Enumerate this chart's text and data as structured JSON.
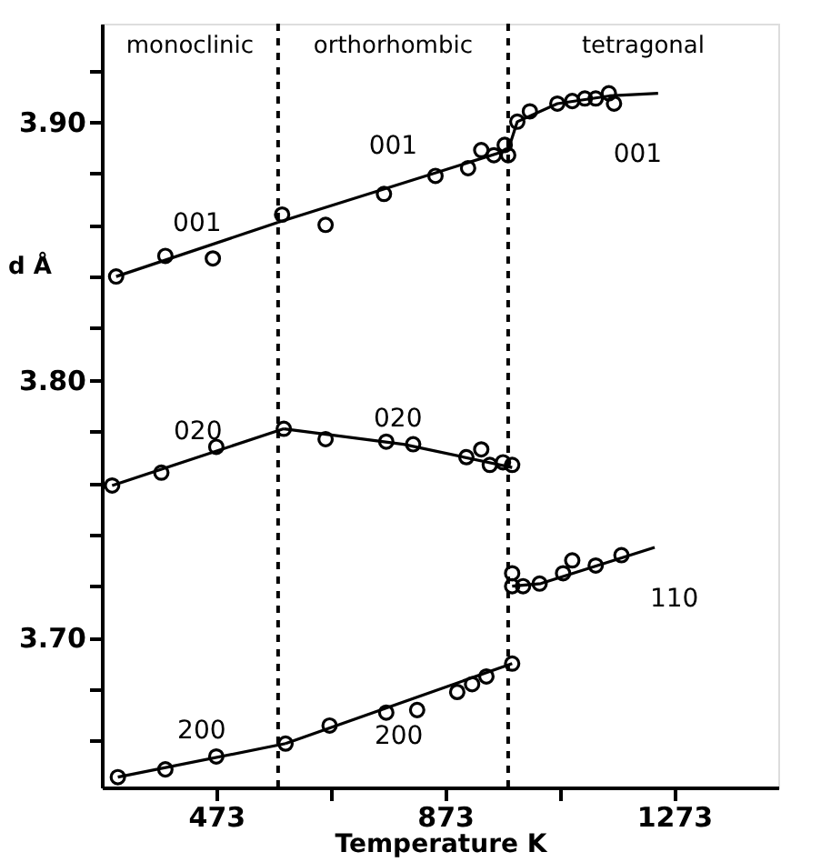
{
  "chart_data": {
    "type": "scatter",
    "xlabel": "Temperature K",
    "ylabel": "d Å",
    "xlim": [
      273,
      1455
    ],
    "ylim": [
      3.642,
      3.938
    ],
    "xticks": [
      473,
      {
        "value": 673,
        "label": null
      },
      873,
      {
        "value": 1073,
        "label": null
      },
      1273
    ],
    "yticks": [
      {
        "value": 3.66,
        "label": null
      },
      {
        "value": 3.68,
        "label": null
      },
      {
        "value": 3.7,
        "label": "3.70"
      },
      {
        "value": 3.72,
        "label": null
      },
      {
        "value": 3.74,
        "label": null
      },
      {
        "value": 3.76,
        "label": null
      },
      {
        "value": 3.78,
        "label": null
      },
      {
        "value": 3.8,
        "label": "3.80"
      },
      {
        "value": 3.82,
        "label": null
      },
      {
        "value": 3.84,
        "label": null
      },
      {
        "value": 3.86,
        "label": null
      },
      {
        "value": 3.88,
        "label": null
      },
      {
        "value": 3.9,
        "label": "3.90"
      },
      {
        "value": 3.92,
        "label": null
      }
    ],
    "grid": false,
    "legend": false,
    "series": [
      {
        "type": "line",
        "name": "001",
        "color": "#000000",
        "marker": "none",
        "line_style": "solid",
        "x": [
          298,
          581
        ],
        "values": [
          3.84,
          3.861
        ]
      },
      {
        "type": "line",
        "name": "001",
        "color": "#000000",
        "marker": "none",
        "line_style": "solid",
        "x": [
          581,
          983
        ],
        "values": [
          3.861,
          3.889
        ]
      },
      {
        "type": "line",
        "name": "001",
        "color": "#000000",
        "marker": "none",
        "line_style": "solid",
        "x": [
          983,
          999,
          1069,
          1160,
          1245
        ],
        "values": [
          3.889,
          3.9,
          3.907,
          3.91,
          3.911
        ]
      },
      {
        "type": "line",
        "name": "020",
        "color": "#000000",
        "marker": "none",
        "line_style": "solid",
        "x": [
          291,
          591
        ],
        "values": [
          3.759,
          3.781
        ]
      },
      {
        "type": "line",
        "name": "020",
        "color": "#000000",
        "marker": "none",
        "line_style": "solid",
        "x": [
          591,
          800,
          990
        ],
        "values": [
          3.781,
          3.775,
          3.766
        ]
      },
      {
        "type": "line",
        "name": "200",
        "color": "#000000",
        "marker": "none",
        "line_style": "solid",
        "x": [
          301,
          594
        ],
        "values": [
          3.646,
          3.659
        ]
      },
      {
        "type": "line",
        "name": "200",
        "color": "#000000",
        "marker": "none",
        "line_style": "solid",
        "x": [
          594,
          990
        ],
        "values": [
          3.659,
          3.69
        ]
      },
      {
        "type": "line",
        "name": "110",
        "color": "#000000",
        "marker": "none",
        "line_style": "solid",
        "x": [
          990,
          1040,
          1239
        ],
        "values": [
          3.72,
          3.721,
          3.735
        ]
      },
      {
        "color": "#000000",
        "marker": "circle",
        "x": [
          298,
          384,
          467,
          588,
          664,
          766,
          856,
          913,
          936,
          958,
          977,
          983,
          999,
          1021,
          1069,
          1095,
          1117,
          1136,
          1159,
          1168
        ],
        "values": [
          3.84,
          3.848,
          3.847,
          3.864,
          3.86,
          3.872,
          3.879,
          3.882,
          3.889,
          3.887,
          3.891,
          3.887,
          3.9,
          3.904,
          3.907,
          3.908,
          3.909,
          3.909,
          3.911,
          3.907
        ]
      },
      {
        "color": "#000000",
        "marker": "circle",
        "x": [
          291,
          377,
          473,
          591,
          664,
          770,
          817,
          910,
          936,
          951,
          974,
          990
        ],
        "values": [
          3.759,
          3.764,
          3.774,
          3.781,
          3.777,
          3.776,
          3.775,
          3.77,
          3.773,
          3.767,
          3.768,
          3.767
        ]
      },
      {
        "color": "#000000",
        "marker": "circle",
        "x": [
          301,
          384,
          473,
          594,
          671,
          770,
          824,
          894,
          920,
          945,
          990
        ],
        "values": [
          3.646,
          3.649,
          3.654,
          3.659,
          3.666,
          3.671,
          3.672,
          3.679,
          3.682,
          3.685,
          3.69
        ]
      },
      {
        "color": "#000000",
        "marker": "circle",
        "x": [
          990,
          990,
          1009,
          1038,
          1079,
          1095,
          1136,
          1181
        ],
        "values": [
          3.725,
          3.72,
          3.72,
          3.721,
          3.725,
          3.73,
          3.728,
          3.732
        ]
      }
    ],
    "ref_lines": [
      {
        "axis": "x",
        "value": 581,
        "color": "#000000",
        "line_style": "dashed"
      },
      {
        "axis": "x",
        "value": 983,
        "color": "#000000",
        "line_style": "dashed"
      }
    ],
    "annotations": [
      "monoclinic",
      "orthorhombic",
      "tetragonal"
    ]
  }
}
